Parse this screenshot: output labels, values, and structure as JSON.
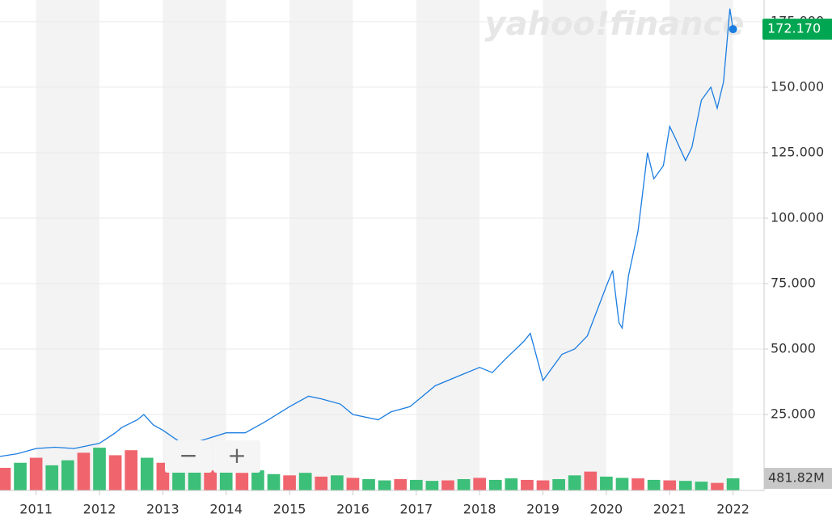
{
  "chart_data": {
    "type": "line",
    "watermark": "yahoo!finance",
    "x": [
      2010.43,
      2010.7,
      2011.0,
      2011.3,
      2011.6,
      2012.0,
      2012.25,
      2012.35,
      2012.6,
      2012.7,
      2012.85,
      2013.0,
      2013.3,
      2013.6,
      2014.0,
      2014.3,
      2014.6,
      2015.0,
      2015.3,
      2015.5,
      2015.8,
      2016.0,
      2016.4,
      2016.6,
      2016.9,
      2017.1,
      2017.3,
      2017.7,
      2018.0,
      2018.2,
      2018.4,
      2018.7,
      2018.8,
      2018.9,
      2019.0,
      2019.3,
      2019.5,
      2019.7,
      2020.0,
      2020.1,
      2020.2,
      2020.25,
      2020.35,
      2020.5,
      2020.65,
      2020.75,
      2020.9,
      2021.0,
      2021.1,
      2021.25,
      2021.35,
      2021.5,
      2021.65,
      2021.75,
      2021.85,
      2021.95,
      2022.0
    ],
    "series": [
      {
        "color": "#1a7de1",
        "values": [
          9,
          10,
          12,
          12.5,
          12,
          14,
          18,
          20,
          23,
          25,
          21,
          19,
          14,
          15,
          18,
          18,
          22,
          28,
          32,
          31,
          29,
          25,
          23,
          26,
          28,
          32,
          36,
          40,
          43,
          41,
          46,
          53,
          56,
          47,
          38,
          48,
          50,
          55,
          74,
          80,
          60,
          58,
          78,
          95,
          125,
          115,
          120,
          135,
          130,
          122,
          127,
          145,
          150,
          142,
          152,
          180,
          172.17
        ],
        "value_labels": [
          null,
          null,
          null,
          null,
          null,
          null,
          null,
          null,
          null,
          null,
          null,
          null,
          null,
          null,
          null,
          null,
          null,
          null,
          null,
          null,
          null,
          null,
          null,
          null,
          null,
          null,
          null,
          null,
          null,
          null,
          null,
          null,
          null,
          null,
          null,
          null,
          null,
          null,
          null,
          null,
          null,
          null,
          null,
          null,
          null,
          null,
          null,
          null,
          null,
          null,
          null,
          null,
          null,
          null,
          null,
          null,
          "172.170"
        ],
        "label_color": "#00a651"
      }
    ],
    "xlim": [
      2010.43,
      2022.49
    ],
    "xticks": [
      2011,
      2012,
      2013,
      2014,
      2015,
      2016,
      2017,
      2018,
      2019,
      2020,
      2021,
      2022
    ],
    "ylim": [
      -4,
      183.3
    ],
    "yticks": [
      {
        "value": 25,
        "label": "25.000"
      },
      {
        "value": 50,
        "label": "50.000"
      },
      {
        "value": 75,
        "label": "75.000"
      },
      {
        "value": 100,
        "label": "100.000"
      },
      {
        "value": 125,
        "label": "125.000"
      },
      {
        "value": 150,
        "label": "150.000"
      },
      {
        "value": 175,
        "label": "175.000"
      }
    ],
    "grid": true,
    "volume": {
      "x": [
        2010.5,
        2010.75,
        2011.0,
        2011.25,
        2011.5,
        2011.75,
        2012.0,
        2012.25,
        2012.5,
        2012.75,
        2013.0,
        2013.25,
        2013.5,
        2013.75,
        2014.0,
        2014.25,
        2014.5,
        2014.75,
        2015.0,
        2015.25,
        2015.5,
        2015.75,
        2016.0,
        2016.25,
        2016.5,
        2016.75,
        2017.0,
        2017.25,
        2017.5,
        2017.75,
        2018.0,
        2018.25,
        2018.5,
        2018.75,
        2019.0,
        2019.25,
        2019.5,
        2019.75,
        2020.0,
        2020.25,
        2020.5,
        2020.75,
        2021.0,
        2021.25,
        2021.5,
        2021.75,
        2022.0
      ],
      "values": [
        900,
        1100,
        1300,
        1000,
        1200,
        1500,
        1700,
        1400,
        1600,
        1300,
        1100,
        1000,
        900,
        800,
        750,
        700,
        800,
        650,
        600,
        700,
        550,
        600,
        500,
        450,
        400,
        450,
        420,
        380,
        400,
        450,
        500,
        420,
        480,
        420,
        400,
        450,
        600,
        750,
        550,
        500,
        480,
        420,
        400,
        380,
        350,
        300,
        481.82
      ],
      "value_labels": [
        null,
        null,
        null,
        null,
        null,
        null,
        null,
        null,
        null,
        null,
        null,
        null,
        null,
        null,
        null,
        null,
        null,
        null,
        null,
        null,
        null,
        null,
        null,
        null,
        null,
        null,
        null,
        null,
        null,
        null,
        null,
        null,
        null,
        null,
        null,
        null,
        null,
        null,
        null,
        null,
        null,
        null,
        null,
        null,
        null,
        null,
        "481.82M"
      ],
      "colors": [
        "#f0646e",
        "#3cbf78",
        "#f0646e",
        "#3cbf78",
        "#3cbf78",
        "#f0646e",
        "#3cbf78",
        "#f0646e",
        "#f0646e",
        "#3cbf78",
        "#f0646e",
        "#3cbf78",
        "#3cbf78",
        "#f0646e",
        "#3cbf78",
        "#f0646e",
        "#3cbf78",
        "#3cbf78",
        "#f0646e",
        "#3cbf78",
        "#f0646e",
        "#3cbf78",
        "#f0646e",
        "#3cbf78",
        "#3cbf78",
        "#f0646e",
        "#3cbf78",
        "#3cbf78",
        "#f0646e",
        "#3cbf78",
        "#f0646e",
        "#3cbf78",
        "#3cbf78",
        "#f0646e",
        "#f0646e",
        "#3cbf78",
        "#3cbf78",
        "#f0646e",
        "#3cbf78",
        "#3cbf78",
        "#f0646e",
        "#3cbf78",
        "#f0646e",
        "#3cbf78",
        "#3cbf78",
        "#f0646e",
        "#3cbf78"
      ],
      "ylim": [
        0,
        19500
      ]
    },
    "zoom_out": "−",
    "zoom_in": "+"
  }
}
